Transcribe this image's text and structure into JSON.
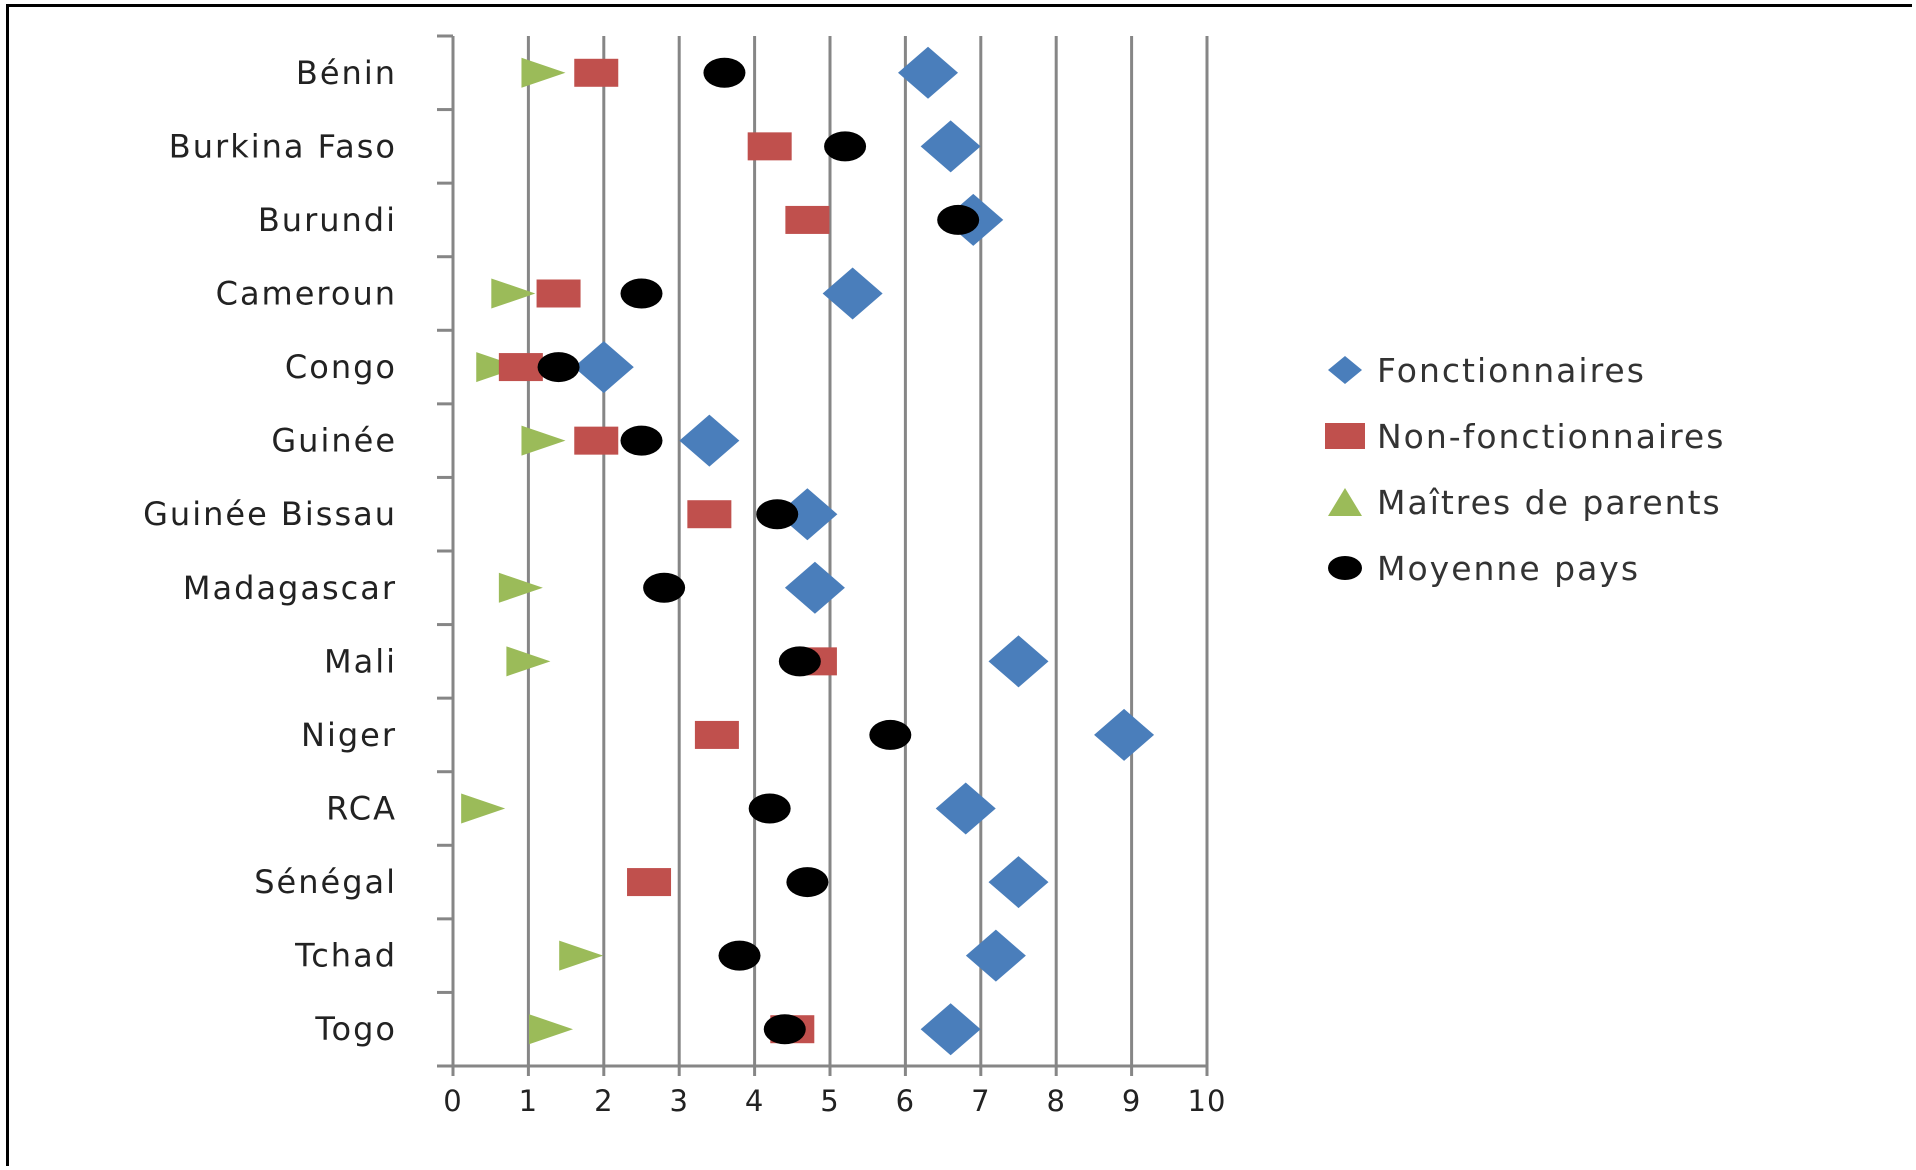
{
  "chart_data": {
    "type": "scatter",
    "orientation": "horizontal",
    "categories": [
      "Bénin",
      "Burkina Faso",
      "Burundi",
      "Cameroun",
      "Congo",
      "Guinée",
      "Guinée Bissau",
      "Madagascar",
      "Mali",
      "Niger",
      "RCA",
      "Sénégal",
      "Tchad",
      "Togo"
    ],
    "xlim": [
      0,
      10
    ],
    "xticks": [
      0,
      1,
      2,
      3,
      4,
      5,
      6,
      7,
      8,
      9,
      10
    ],
    "grid": true,
    "legend_position": "right",
    "series": [
      {
        "name": "Fonctionnaires",
        "marker": "diamond",
        "color": "#4A7EBB",
        "values": [
          6.3,
          6.6,
          6.9,
          5.3,
          2.0,
          3.4,
          4.7,
          4.8,
          7.5,
          8.9,
          6.8,
          7.5,
          7.2,
          6.6
        ]
      },
      {
        "name": "Non-fonctionnaires",
        "marker": "square",
        "color": "#C0504D",
        "values": [
          1.9,
          4.2,
          4.7,
          1.4,
          0.9,
          1.9,
          3.4,
          null,
          4.8,
          3.5,
          null,
          2.6,
          null,
          4.5
        ]
      },
      {
        "name": "Maîtres de parents",
        "marker": "triangle",
        "color": "#9BBB59",
        "values": [
          1.2,
          null,
          null,
          0.8,
          0.6,
          1.2,
          null,
          0.9,
          1.0,
          null,
          0.4,
          null,
          1.7,
          1.3
        ]
      },
      {
        "name": "Moyenne pays",
        "marker": "circle",
        "color": "#000000",
        "values": [
          3.6,
          5.2,
          6.7,
          2.5,
          1.4,
          2.5,
          4.3,
          2.8,
          4.6,
          5.8,
          4.2,
          4.7,
          3.8,
          4.4
        ]
      }
    ]
  }
}
